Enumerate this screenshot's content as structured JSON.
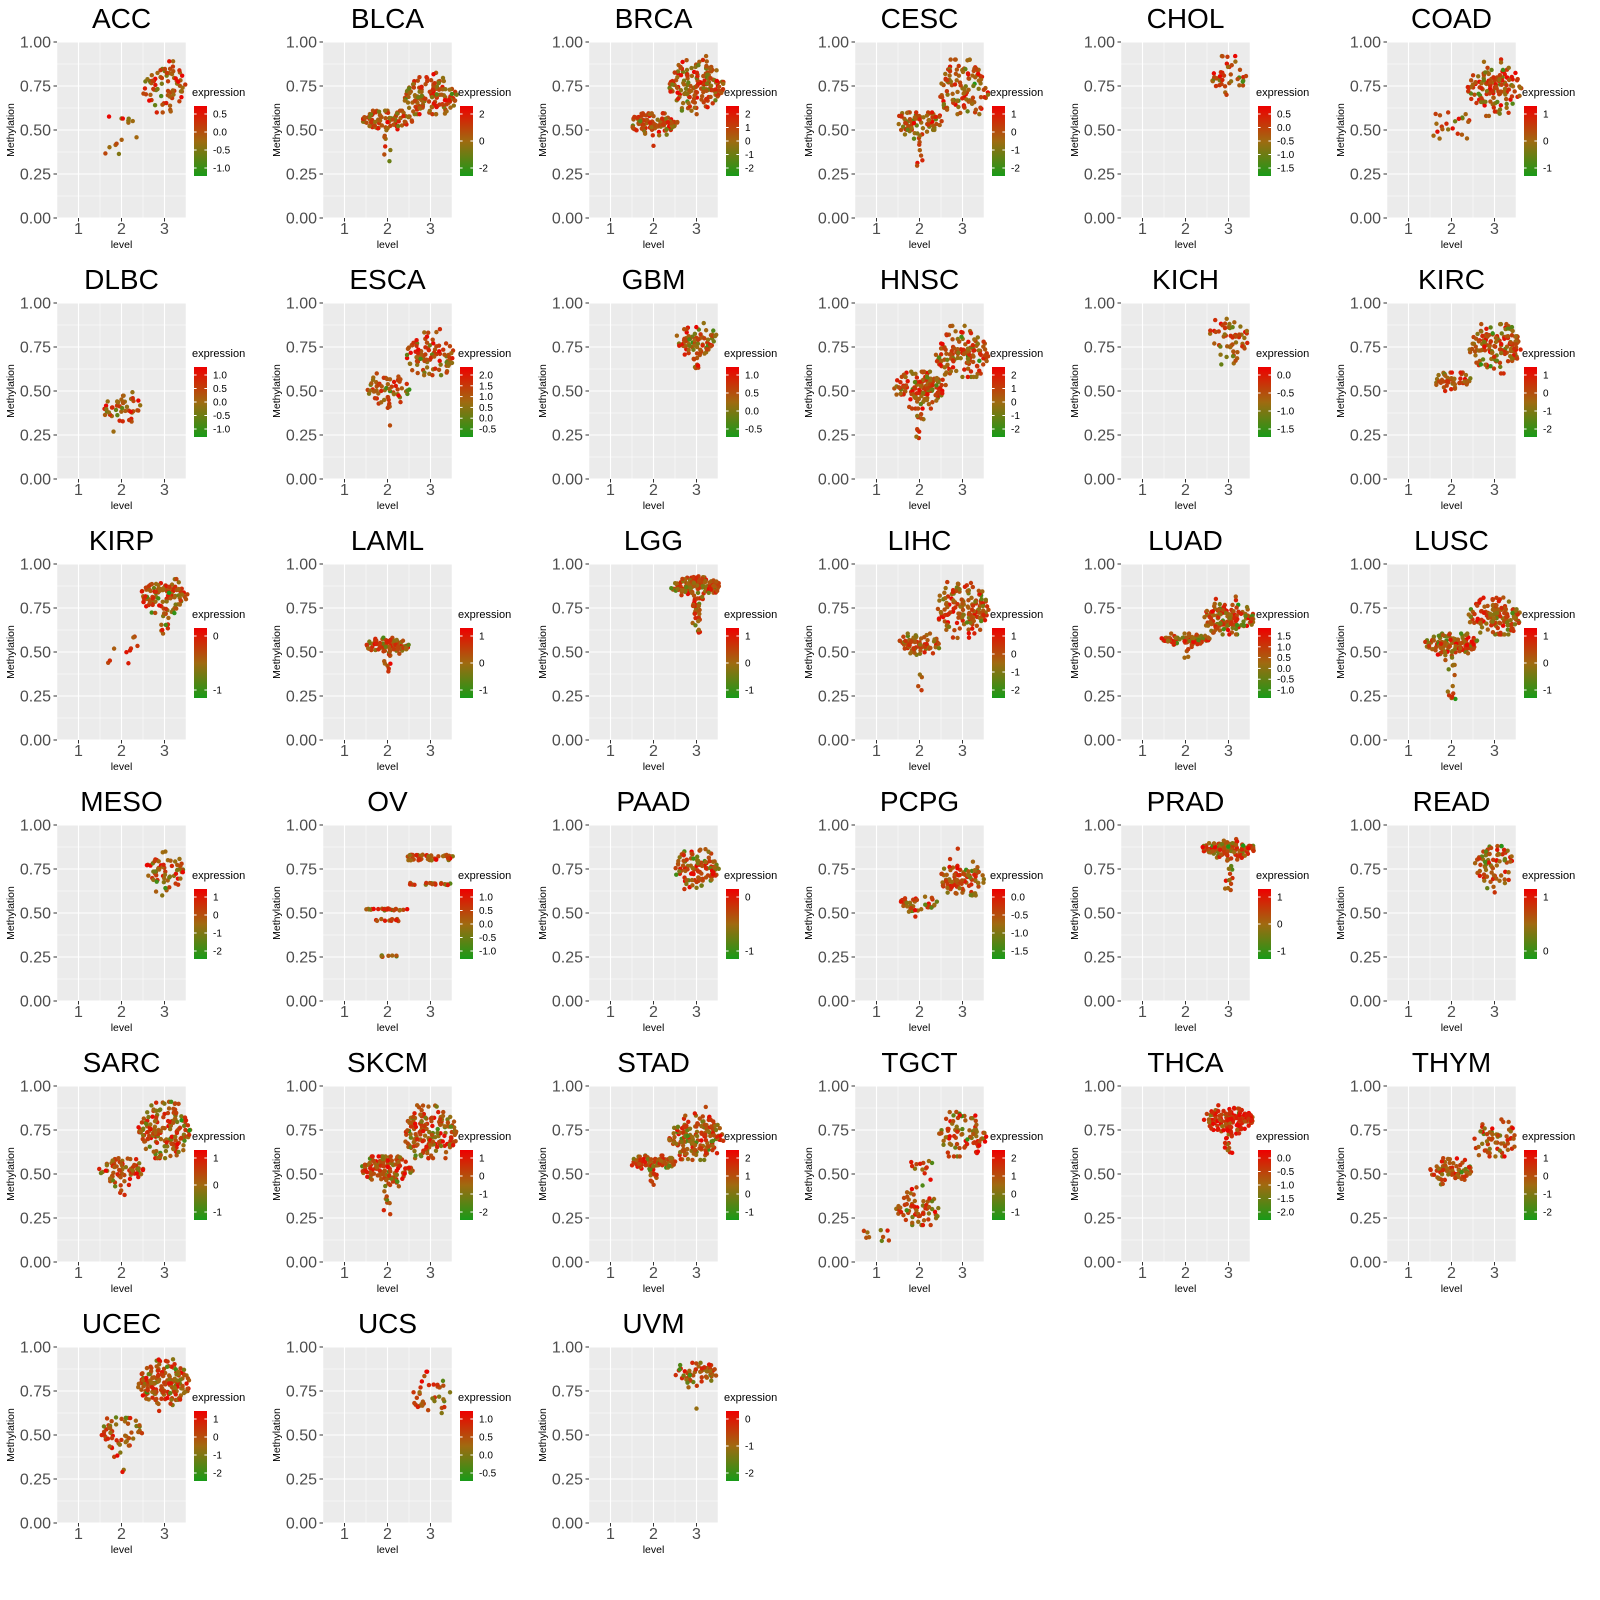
{
  "figure": {
    "background": "#ffffff",
    "panel_bg": "#ebebeb",
    "grid_color": "#ffffff",
    "tick_label_color": "#4d4d4d",
    "axis_tick_color": "#333333",
    "text_color": "#000000",
    "point_red": "#ee0000",
    "point_mid": "#a06a10",
    "point_green": "#189a18"
  },
  "axes": {
    "ylabel": "Methylation",
    "xlabel": "level",
    "y_ticks": [
      "0.00",
      "0.25",
      "0.50",
      "0.75",
      "1.00"
    ],
    "y_tick_values": [
      0,
      0.25,
      0.5,
      0.75,
      1.0
    ],
    "x_ticks": [
      "1",
      "2",
      "3"
    ],
    "x_tick_values": [
      1,
      2,
      3
    ],
    "ylim": [
      0,
      1
    ]
  },
  "legend": {
    "title": "expression"
  },
  "chart_data": [
    {
      "type": "scatter",
      "title": "ACC",
      "legend_ticks": [
        "0.5",
        "0.0",
        "-0.5",
        "-1.0"
      ],
      "clusters": [
        {
          "level": 2,
          "profile": "sparse",
          "lo": 0.36,
          "hi": 0.6,
          "w": 0.4,
          "n": 14
        },
        {
          "level": 3,
          "profile": "blob",
          "mu": 0.75,
          "sd": 0.075,
          "lo": 0.6,
          "hi": 0.89,
          "w": 0.52,
          "n": 72
        }
      ]
    },
    {
      "type": "scatter",
      "title": "BLCA",
      "legend_ticks": [
        "2",
        "0",
        "-2"
      ],
      "clusters": [
        {
          "level": 2,
          "profile": "tail",
          "mu": 0.555,
          "sd": 0.03,
          "lo": 0.46,
          "hi": 0.61,
          "w": 0.58,
          "n": 95,
          "tailLo": 0.3,
          "frac": 0.03
        },
        {
          "level": 3,
          "profile": "blob",
          "mu": 0.685,
          "sd": 0.06,
          "lo": 0.59,
          "hi": 0.87,
          "w": 0.62,
          "n": 140
        }
      ]
    },
    {
      "type": "scatter",
      "title": "BRCA",
      "legend_ticks": [
        "2",
        "1",
        "0",
        "-1",
        "-2"
      ],
      "clusters": [
        {
          "level": 2,
          "profile": "blob",
          "mu": 0.54,
          "sd": 0.033,
          "lo": 0.47,
          "hi": 0.595,
          "w": 0.56,
          "n": 110
        },
        {
          "level": 3,
          "profile": "blob",
          "mu": 0.755,
          "sd": 0.07,
          "lo": 0.59,
          "hi": 0.92,
          "w": 0.64,
          "n": 170
        }
      ],
      "outliers": [
        [
          2,
          0.41
        ]
      ]
    },
    {
      "type": "scatter",
      "title": "CESC",
      "legend_ticks": [
        "1",
        "0",
        "-1",
        "-2"
      ],
      "clusters": [
        {
          "level": 2,
          "profile": "tail",
          "mu": 0.545,
          "sd": 0.04,
          "lo": 0.44,
          "hi": 0.6,
          "w": 0.56,
          "n": 85,
          "tailLo": 0.29,
          "frac": 0.09
        },
        {
          "level": 3,
          "profile": "blob",
          "mu": 0.72,
          "sd": 0.08,
          "lo": 0.59,
          "hi": 0.9,
          "w": 0.6,
          "n": 115
        }
      ]
    },
    {
      "type": "scatter",
      "title": "CHOL",
      "legend_ticks": [
        "0.5",
        "0.0",
        "-0.5",
        "-1.0",
        "-1.5"
      ],
      "clusters": [
        {
          "level": 3,
          "profile": "blob",
          "mu": 0.8,
          "sd": 0.05,
          "lo": 0.7,
          "hi": 0.92,
          "w": 0.42,
          "n": 42
        }
      ]
    },
    {
      "type": "scatter",
      "title": "COAD",
      "legend_ticks": [
        "1",
        "0",
        "-1"
      ],
      "clusters": [
        {
          "level": 2,
          "profile": "sparse",
          "lo": 0.45,
          "hi": 0.6,
          "w": 0.42,
          "n": 22
        },
        {
          "level": 3,
          "profile": "blob",
          "mu": 0.74,
          "sd": 0.07,
          "lo": 0.58,
          "hi": 0.92,
          "w": 0.63,
          "n": 140
        }
      ]
    },
    {
      "type": "scatter",
      "title": "DLBC",
      "legend_ticks": [
        "1.0",
        "0.5",
        "0.0",
        "-0.5",
        "-1.0"
      ],
      "clusters": [
        {
          "level": 2,
          "profile": "blob",
          "mu": 0.4,
          "sd": 0.05,
          "lo": 0.25,
          "hi": 0.53,
          "w": 0.46,
          "n": 46
        }
      ]
    },
    {
      "type": "scatter",
      "title": "ESCA",
      "legend_ticks": [
        "2.0",
        "1.5",
        "1.0",
        "0.5",
        "0.0",
        "-0.5"
      ],
      "clusters": [
        {
          "level": 2,
          "profile": "tail",
          "mu": 0.52,
          "sd": 0.045,
          "lo": 0.42,
          "hi": 0.6,
          "w": 0.52,
          "n": 62,
          "tailLo": 0.3,
          "frac": 0.1
        },
        {
          "level": 3,
          "profile": "blob",
          "mu": 0.7,
          "sd": 0.065,
          "lo": 0.59,
          "hi": 0.87,
          "w": 0.56,
          "n": 95
        }
      ]
    },
    {
      "type": "scatter",
      "title": "GBM",
      "legend_ticks": [
        "1.0",
        "0.5",
        "0.0",
        "-0.5"
      ],
      "clusters": [
        {
          "level": 3,
          "profile": "tail",
          "mu": 0.79,
          "sd": 0.045,
          "lo": 0.68,
          "hi": 0.9,
          "w": 0.52,
          "n": 85,
          "tailLo": 0.63,
          "frac": 0.08
        }
      ]
    },
    {
      "type": "scatter",
      "title": "HNSC",
      "legend_ticks": [
        "2",
        "1",
        "0",
        "-1",
        "-2"
      ],
      "clusters": [
        {
          "level": 2,
          "profile": "tail",
          "mu": 0.52,
          "sd": 0.05,
          "lo": 0.4,
          "hi": 0.61,
          "w": 0.62,
          "n": 150,
          "tailLo": 0.23,
          "frac": 0.1
        },
        {
          "level": 3,
          "profile": "blob",
          "mu": 0.7,
          "sd": 0.07,
          "lo": 0.58,
          "hi": 0.87,
          "w": 0.62,
          "n": 130
        }
      ]
    },
    {
      "type": "scatter",
      "title": "KICH",
      "legend_ticks": [
        "0.0",
        "-0.5",
        "-1.0",
        "-1.5"
      ],
      "clusters": [
        {
          "level": 3,
          "profile": "blob",
          "mu": 0.8,
          "sd": 0.07,
          "lo": 0.63,
          "hi": 0.91,
          "w": 0.46,
          "n": 55
        }
      ]
    },
    {
      "type": "scatter",
      "title": "KIRC",
      "legend_ticks": [
        "1",
        "0",
        "-1",
        "-2"
      ],
      "clusters": [
        {
          "level": 2,
          "profile": "blob",
          "mu": 0.565,
          "sd": 0.025,
          "lo": 0.5,
          "hi": 0.605,
          "w": 0.46,
          "n": 48
        },
        {
          "level": 3,
          "profile": "blob",
          "mu": 0.75,
          "sd": 0.07,
          "lo": 0.6,
          "hi": 0.88,
          "w": 0.62,
          "n": 150
        }
      ]
    },
    {
      "type": "scatter",
      "title": "KIRP",
      "legend_ticks": [
        "0",
        "-1"
      ],
      "clusters": [
        {
          "level": 2,
          "profile": "sparse",
          "lo": 0.43,
          "hi": 0.59,
          "w": 0.38,
          "n": 10
        },
        {
          "level": 3,
          "profile": "tail",
          "mu": 0.82,
          "sd": 0.045,
          "lo": 0.66,
          "hi": 0.92,
          "w": 0.58,
          "n": 120,
          "tailLo": 0.6,
          "frac": 0.1
        }
      ]
    },
    {
      "type": "scatter",
      "title": "LAML",
      "legend_ticks": [
        "1",
        "0",
        "-1"
      ],
      "clusters": [
        {
          "level": 2,
          "profile": "tail",
          "mu": 0.535,
          "sd": 0.022,
          "lo": 0.47,
          "hi": 0.585,
          "w": 0.52,
          "n": 95,
          "tailLo": 0.37,
          "frac": 0.1
        }
      ]
    },
    {
      "type": "scatter",
      "title": "LGG",
      "legend_ticks": [
        "1",
        "0",
        "-1"
      ],
      "clusters": [
        {
          "level": 3,
          "profile": "tail",
          "mu": 0.87,
          "sd": 0.025,
          "lo": 0.8,
          "hi": 0.93,
          "w": 0.6,
          "n": 160,
          "tailLo": 0.61,
          "frac": 0.15
        }
      ]
    },
    {
      "type": "scatter",
      "title": "LIHC",
      "legend_ticks": [
        "1",
        "0",
        "-1",
        "-2"
      ],
      "clusters": [
        {
          "level": 2,
          "profile": "tail",
          "mu": 0.545,
          "sd": 0.03,
          "lo": 0.47,
          "hi": 0.605,
          "w": 0.52,
          "n": 75,
          "tailLo": 0.28,
          "frac": 0.12
        },
        {
          "level": 3,
          "profile": "blob",
          "mu": 0.75,
          "sd": 0.08,
          "lo": 0.58,
          "hi": 0.9,
          "w": 0.62,
          "n": 150
        }
      ]
    },
    {
      "type": "scatter",
      "title": "LUAD",
      "legend_ticks": [
        "1.5",
        "1.0",
        "0.5",
        "0.0",
        "-0.5",
        "-1.0"
      ],
      "clusters": [
        {
          "level": 2,
          "profile": "tail",
          "mu": 0.575,
          "sd": 0.018,
          "lo": 0.52,
          "hi": 0.605,
          "w": 0.56,
          "n": 95,
          "tailLo": 0.46,
          "frac": 0.06
        },
        {
          "level": 3,
          "profile": "blob",
          "mu": 0.69,
          "sd": 0.05,
          "lo": 0.6,
          "hi": 0.83,
          "w": 0.6,
          "n": 135
        }
      ]
    },
    {
      "type": "scatter",
      "title": "LUSC",
      "legend_ticks": [
        "1",
        "0",
        "-1"
      ],
      "clusters": [
        {
          "level": 2,
          "profile": "tail",
          "mu": 0.55,
          "sd": 0.035,
          "lo": 0.45,
          "hi": 0.605,
          "w": 0.62,
          "n": 130,
          "tailLo": 0.23,
          "frac": 0.13
        },
        {
          "level": 3,
          "profile": "blob",
          "mu": 0.7,
          "sd": 0.06,
          "lo": 0.6,
          "hi": 0.88,
          "w": 0.62,
          "n": 140
        }
      ]
    },
    {
      "type": "scatter",
      "title": "MESO",
      "legend_ticks": [
        "1",
        "0",
        "-1",
        "-2"
      ],
      "clusters": [
        {
          "level": 3,
          "profile": "blob",
          "mu": 0.745,
          "sd": 0.06,
          "lo": 0.6,
          "hi": 0.89,
          "w": 0.44,
          "n": 62
        }
      ]
    },
    {
      "type": "scatter",
      "title": "OV",
      "legend_ticks": [
        "1.0",
        "0.5",
        "0.0",
        "-0.5",
        "-1.0"
      ],
      "clusters": [
        {
          "level": 2,
          "profile": "band",
          "y": 0.52,
          "w": 0.52,
          "n": 26
        },
        {
          "level": 2,
          "profile": "band",
          "y": 0.46,
          "w": 0.3,
          "n": 12
        },
        {
          "level": 2,
          "profile": "band",
          "y": 0.255,
          "w": 0.26,
          "n": 9
        },
        {
          "level": 3,
          "profile": "band",
          "y": 0.825,
          "w": 0.55,
          "n": 26
        },
        {
          "level": 3,
          "profile": "band",
          "y": 0.805,
          "w": 0.55,
          "n": 22
        },
        {
          "level": 3,
          "profile": "band",
          "y": 0.665,
          "w": 0.48,
          "n": 20
        }
      ]
    },
    {
      "type": "scatter",
      "title": "PAAD",
      "legend_ticks": [
        "0",
        "-1"
      ],
      "clusters": [
        {
          "level": 3,
          "profile": "blob",
          "mu": 0.755,
          "sd": 0.06,
          "lo": 0.61,
          "hi": 0.9,
          "w": 0.52,
          "n": 105
        }
      ]
    },
    {
      "type": "scatter",
      "title": "PCPG",
      "legend_ticks": [
        "0.0",
        "-0.5",
        "-1.0",
        "-1.5"
      ],
      "clusters": [
        {
          "level": 2,
          "profile": "blob",
          "mu": 0.555,
          "sd": 0.025,
          "lo": 0.48,
          "hi": 0.595,
          "w": 0.46,
          "n": 42
        },
        {
          "level": 3,
          "profile": "blob",
          "mu": 0.7,
          "sd": 0.06,
          "lo": 0.6,
          "hi": 0.88,
          "w": 0.52,
          "n": 95
        }
      ]
    },
    {
      "type": "scatter",
      "title": "PRAD",
      "legend_ticks": [
        "1",
        "0",
        "-1"
      ],
      "clusters": [
        {
          "level": 3,
          "profile": "tail",
          "mu": 0.865,
          "sd": 0.025,
          "lo": 0.79,
          "hi": 0.92,
          "w": 0.62,
          "n": 150,
          "tailLo": 0.63,
          "frac": 0.13
        }
      ]
    },
    {
      "type": "scatter",
      "title": "READ",
      "legend_ticks": [
        "1",
        "0"
      ],
      "clusters": [
        {
          "level": 3,
          "profile": "blob",
          "mu": 0.77,
          "sd": 0.06,
          "lo": 0.6,
          "hi": 0.88,
          "w": 0.46,
          "n": 75
        }
      ]
    },
    {
      "type": "scatter",
      "title": "SARC",
      "legend_ticks": [
        "1",
        "0",
        "-1"
      ],
      "clusters": [
        {
          "level": 2,
          "profile": "tail",
          "mu": 0.53,
          "sd": 0.04,
          "lo": 0.43,
          "hi": 0.59,
          "w": 0.52,
          "n": 75,
          "tailLo": 0.35,
          "frac": 0.09
        },
        {
          "level": 3,
          "profile": "blob",
          "mu": 0.75,
          "sd": 0.08,
          "lo": 0.59,
          "hi": 0.91,
          "w": 0.62,
          "n": 170
        }
      ]
    },
    {
      "type": "scatter",
      "title": "SKCM",
      "legend_ticks": [
        "1",
        "0",
        "-1",
        "-2"
      ],
      "clusters": [
        {
          "level": 2,
          "profile": "tail",
          "mu": 0.53,
          "sd": 0.04,
          "lo": 0.4,
          "hi": 0.6,
          "w": 0.6,
          "n": 140,
          "tailLo": 0.25,
          "frac": 0.06
        },
        {
          "level": 3,
          "profile": "blob",
          "mu": 0.73,
          "sd": 0.075,
          "lo": 0.59,
          "hi": 0.91,
          "w": 0.63,
          "n": 170
        }
      ]
    },
    {
      "type": "scatter",
      "title": "STAD",
      "legend_ticks": [
        "2",
        "1",
        "0",
        "-1"
      ],
      "clusters": [
        {
          "level": 2,
          "profile": "tail",
          "mu": 0.565,
          "sd": 0.02,
          "lo": 0.5,
          "hi": 0.605,
          "w": 0.56,
          "n": 95,
          "tailLo": 0.41,
          "frac": 0.11
        },
        {
          "level": 3,
          "profile": "blob",
          "mu": 0.7,
          "sd": 0.065,
          "lo": 0.58,
          "hi": 0.9,
          "w": 0.64,
          "n": 170
        }
      ]
    },
    {
      "type": "scatter",
      "title": "TGCT",
      "legend_ticks": [
        "2",
        "1",
        "0",
        "-1"
      ],
      "clusters": [
        {
          "level": 1,
          "profile": "sparse",
          "lo": 0.12,
          "hi": 0.2,
          "w": 0.32,
          "n": 9
        },
        {
          "level": 2,
          "profile": "blob",
          "mu": 0.3,
          "sd": 0.05,
          "lo": 0.21,
          "hi": 0.4,
          "w": 0.56,
          "n": 62
        },
        {
          "level": 2,
          "profile": "sparse",
          "lo": 0.4,
          "hi": 0.58,
          "w": 0.3,
          "n": 16
        },
        {
          "level": 3,
          "profile": "blob",
          "mu": 0.72,
          "sd": 0.065,
          "lo": 0.6,
          "hi": 0.87,
          "w": 0.56,
          "n": 85
        }
      ]
    },
    {
      "type": "scatter",
      "title": "THCA",
      "legend_ticks": [
        "0.0",
        "-0.5",
        "-1.0",
        "-1.5",
        "-2.0"
      ],
      "color_bias": 0.2,
      "clusters": [
        {
          "level": 3,
          "profile": "tail",
          "mu": 0.81,
          "sd": 0.035,
          "lo": 0.73,
          "hi": 0.91,
          "w": 0.58,
          "n": 165,
          "tailLo": 0.62,
          "frac": 0.1
        }
      ]
    },
    {
      "type": "scatter",
      "title": "THYM",
      "legend_ticks": [
        "1",
        "0",
        "-1",
        "-2"
      ],
      "clusters": [
        {
          "level": 2,
          "profile": "blob",
          "mu": 0.52,
          "sd": 0.035,
          "lo": 0.41,
          "hi": 0.59,
          "w": 0.5,
          "n": 72
        },
        {
          "level": 3,
          "profile": "blob",
          "mu": 0.7,
          "sd": 0.07,
          "lo": 0.6,
          "hi": 0.9,
          "w": 0.5,
          "n": 62
        }
      ]
    },
    {
      "type": "scatter",
      "title": "UCEC",
      "legend_ticks": [
        "1",
        "0",
        "-1",
        "-2"
      ],
      "clusters": [
        {
          "level": 2,
          "profile": "tail",
          "mu": 0.52,
          "sd": 0.05,
          "lo": 0.37,
          "hi": 0.6,
          "w": 0.5,
          "n": 55,
          "tailLo": 0.26,
          "frac": 0.1
        },
        {
          "level": 3,
          "profile": "blob",
          "mu": 0.79,
          "sd": 0.065,
          "lo": 0.6,
          "hi": 0.93,
          "w": 0.62,
          "n": 170
        }
      ]
    },
    {
      "type": "scatter",
      "title": "UCS",
      "legend_ticks": [
        "1.0",
        "0.5",
        "0.0",
        "-0.5"
      ],
      "clusters": [
        {
          "level": 3,
          "profile": "blob",
          "mu": 0.73,
          "sd": 0.06,
          "lo": 0.6,
          "hi": 0.86,
          "w": 0.46,
          "n": 36
        }
      ]
    },
    {
      "type": "scatter",
      "title": "UVM",
      "legend_ticks": [
        "0",
        "-1",
        "-2"
      ],
      "clusters": [
        {
          "level": 3,
          "profile": "blob",
          "mu": 0.855,
          "sd": 0.032,
          "lo": 0.76,
          "hi": 0.91,
          "w": 0.52,
          "n": 62
        }
      ],
      "outliers": [
        [
          3,
          0.65
        ]
      ]
    }
  ]
}
